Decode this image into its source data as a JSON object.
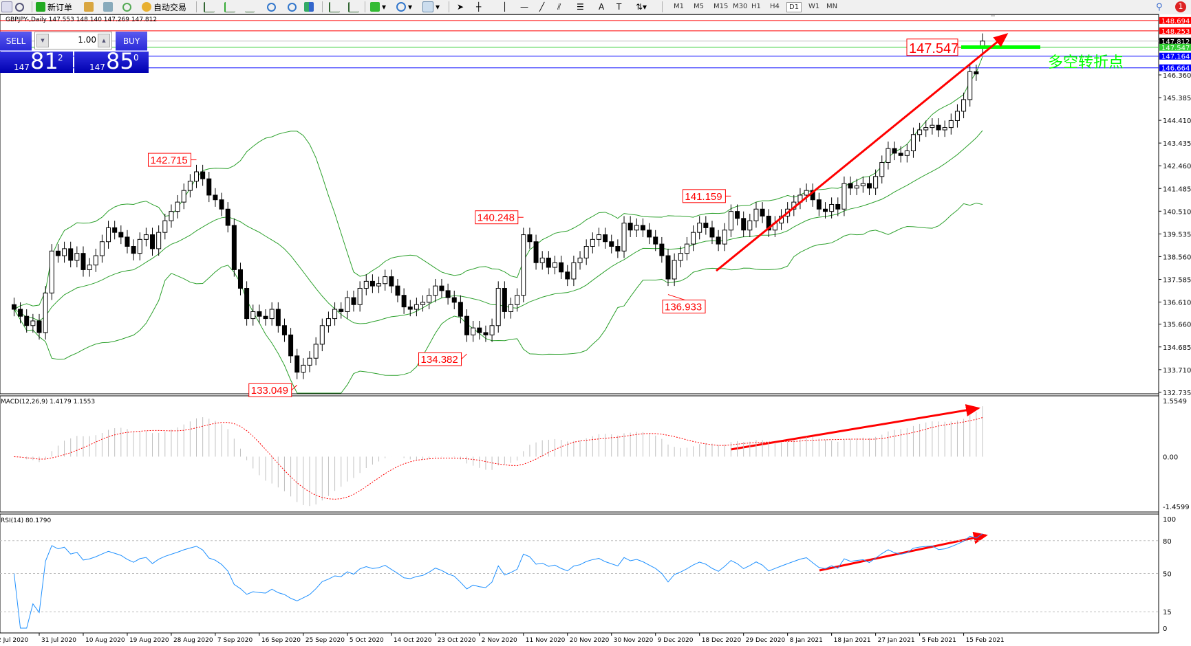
{
  "toolbar": {
    "new_order": "新订单",
    "auto_trading": "自动交易",
    "timeframes": [
      "M1",
      "M5",
      "M15",
      "M30",
      "H1",
      "H4",
      "D1",
      "W1",
      "MN"
    ],
    "active_timeframe": "D1",
    "notification_count": "1"
  },
  "chart": {
    "title": "GBPJPY-,Daily  147.553 148.140 147.269 147.812",
    "symbol": "GBPJPY-",
    "period": "Daily"
  },
  "trade_panel": {
    "sell_label": "SELL",
    "buy_label": "BUY",
    "lot": "1.00",
    "sell_price": {
      "prefix": "147",
      "big": "81",
      "sup": "2"
    },
    "buy_price": {
      "prefix": "147",
      "big": "85",
      "sup": "0"
    }
  },
  "price_axis": [
    "146.360",
    "145.385",
    "144.410",
    "143.435",
    "142.460",
    "141.485",
    "140.510",
    "139.535",
    "138.560",
    "137.585",
    "136.610",
    "135.660",
    "134.685",
    "133.710",
    "132.735"
  ],
  "price_lines": [
    {
      "price": 148.694,
      "label": "148.694",
      "color": "#ff0000",
      "tag_bg": "#ff0000"
    },
    {
      "price": 148.253,
      "label": "148.253",
      "color": "#ff0000",
      "tag_bg": "#ff0000"
    },
    {
      "price": 147.812,
      "label": "147.812",
      "color": "#c0c0c0",
      "tag_bg": "#000000"
    },
    {
      "price": 147.547,
      "label": "147.547",
      "color": "#32cd32",
      "tag_bg": "#32cd32"
    },
    {
      "price": 147.164,
      "label": "147.164",
      "color": "#0000ff",
      "tag_bg": "#0000ff"
    },
    {
      "price": 146.664,
      "label": "146.664",
      "color": "#0000ff",
      "tag_bg": "#0000ff"
    }
  ],
  "annotations": [
    {
      "label": "142.715",
      "bar": 29,
      "price": 142.715,
      "side": "left"
    },
    {
      "label": "133.049",
      "bar": 45,
      "price": 133.049,
      "side": "left-below"
    },
    {
      "label": "134.382",
      "bar": 72,
      "price": 134.382,
      "side": "left-below"
    },
    {
      "label": "140.248",
      "bar": 81,
      "price": 140.248,
      "side": "left"
    },
    {
      "label": "141.159",
      "bar": 114,
      "price": 141.159,
      "side": "left"
    },
    {
      "label": "136.933",
      "bar": 104,
      "price": 136.933,
      "side": "right-below"
    },
    {
      "label": "147.547",
      "bar": 152,
      "price": 147.547,
      "side": "big"
    }
  ],
  "pivot_text": "多空转折点",
  "colors": {
    "bands": "#2ca02c",
    "rsi": "#1e90ff",
    "macd_hist": "#c0c0c0",
    "macd_signal": "#ff0000",
    "arrow": "#ff0000",
    "pivot": "#00ff00"
  },
  "macd": {
    "label": "MACD(12,26,9) 1.4179 1.1553",
    "axis": [
      "1.5549",
      "0.00",
      "-1.4599"
    ],
    "range": [
      -1.4599,
      1.5549
    ]
  },
  "rsi": {
    "label": "RSI(14) 80.1790",
    "axis": [
      "100",
      "80",
      "50",
      "15",
      "0"
    ],
    "levels": [
      80,
      50,
      15
    ]
  },
  "date_axis": [
    "2 Jul 2020",
    "31 Jul 2020",
    "10 Aug 2020",
    "19 Aug 2020",
    "28 Aug 2020",
    "7 Sep 2020",
    "16 Sep 2020",
    "25 Sep 2020",
    "5 Oct 2020",
    "14 Oct 2020",
    "23 Oct 2020",
    "2 Nov 2020",
    "11 Nov 2020",
    "20 Nov 2020",
    "30 Nov 2020",
    "9 Dec 2020",
    "18 Dec 2020",
    "29 Dec 2020",
    "8 Jan 2021",
    "18 Jan 2021",
    "27 Jan 2021",
    "5 Feb 2021",
    "15 Feb 2021"
  ],
  "chart_data": {
    "type": "candlestick",
    "indicators": [
      "Bollinger Bands(20,2)",
      "MACD(12,26,9)",
      "RSI(14)"
    ],
    "last_bar": {
      "open": 147.553,
      "high": 148.14,
      "low": 147.269,
      "close": 147.812
    },
    "closes": [
      136.3,
      136.0,
      135.6,
      135.8,
      135.3,
      137.0,
      138.8,
      138.6,
      138.9,
      138.4,
      138.7,
      138.0,
      138.2,
      138.6,
      139.2,
      139.8,
      139.6,
      139.4,
      139.0,
      138.7,
      139.3,
      139.5,
      138.9,
      139.6,
      140.1,
      140.5,
      140.9,
      141.4,
      141.8,
      142.2,
      141.9,
      141.2,
      141.0,
      140.6,
      139.9,
      138.0,
      137.2,
      135.9,
      136.2,
      136.0,
      135.9,
      136.3,
      135.6,
      135.2,
      134.3,
      133.6,
      133.9,
      134.2,
      134.8,
      135.6,
      135.9,
      136.3,
      136.2,
      136.8,
      136.5,
      137.2,
      137.5,
      137.3,
      137.4,
      137.7,
      137.3,
      136.9,
      136.4,
      136.3,
      136.5,
      136.6,
      136.9,
      137.3,
      137.1,
      136.8,
      136.6,
      136.0,
      135.2,
      135.5,
      135.3,
      135.2,
      135.6,
      137.2,
      136.2,
      136.5,
      136.9,
      139.5,
      139.2,
      138.3,
      138.5,
      138.1,
      138.3,
      137.9,
      137.6,
      138.3,
      138.5,
      139.0,
      139.3,
      139.5,
      139.2,
      139.0,
      138.8,
      140.0,
      139.7,
      139.9,
      139.7,
      139.4,
      139.1,
      138.6,
      137.6,
      138.4,
      138.7,
      139.1,
      139.6,
      140.0,
      139.8,
      139.4,
      139.1,
      139.7,
      140.5,
      140.2,
      139.7,
      140.1,
      140.6,
      140.3,
      139.7,
      140.0,
      140.3,
      140.6,
      140.9,
      141.2,
      141.4,
      141.0,
      140.6,
      140.5,
      140.8,
      140.6,
      141.7,
      141.5,
      141.6,
      141.7,
      141.5,
      142.0,
      142.6,
      143.2,
      143.0,
      142.9,
      143.1,
      143.8,
      144.0,
      144.1,
      144.2,
      144.0,
      144.1,
      144.4,
      144.8,
      145.3,
      146.5,
      146.4,
      147.812
    ]
  }
}
